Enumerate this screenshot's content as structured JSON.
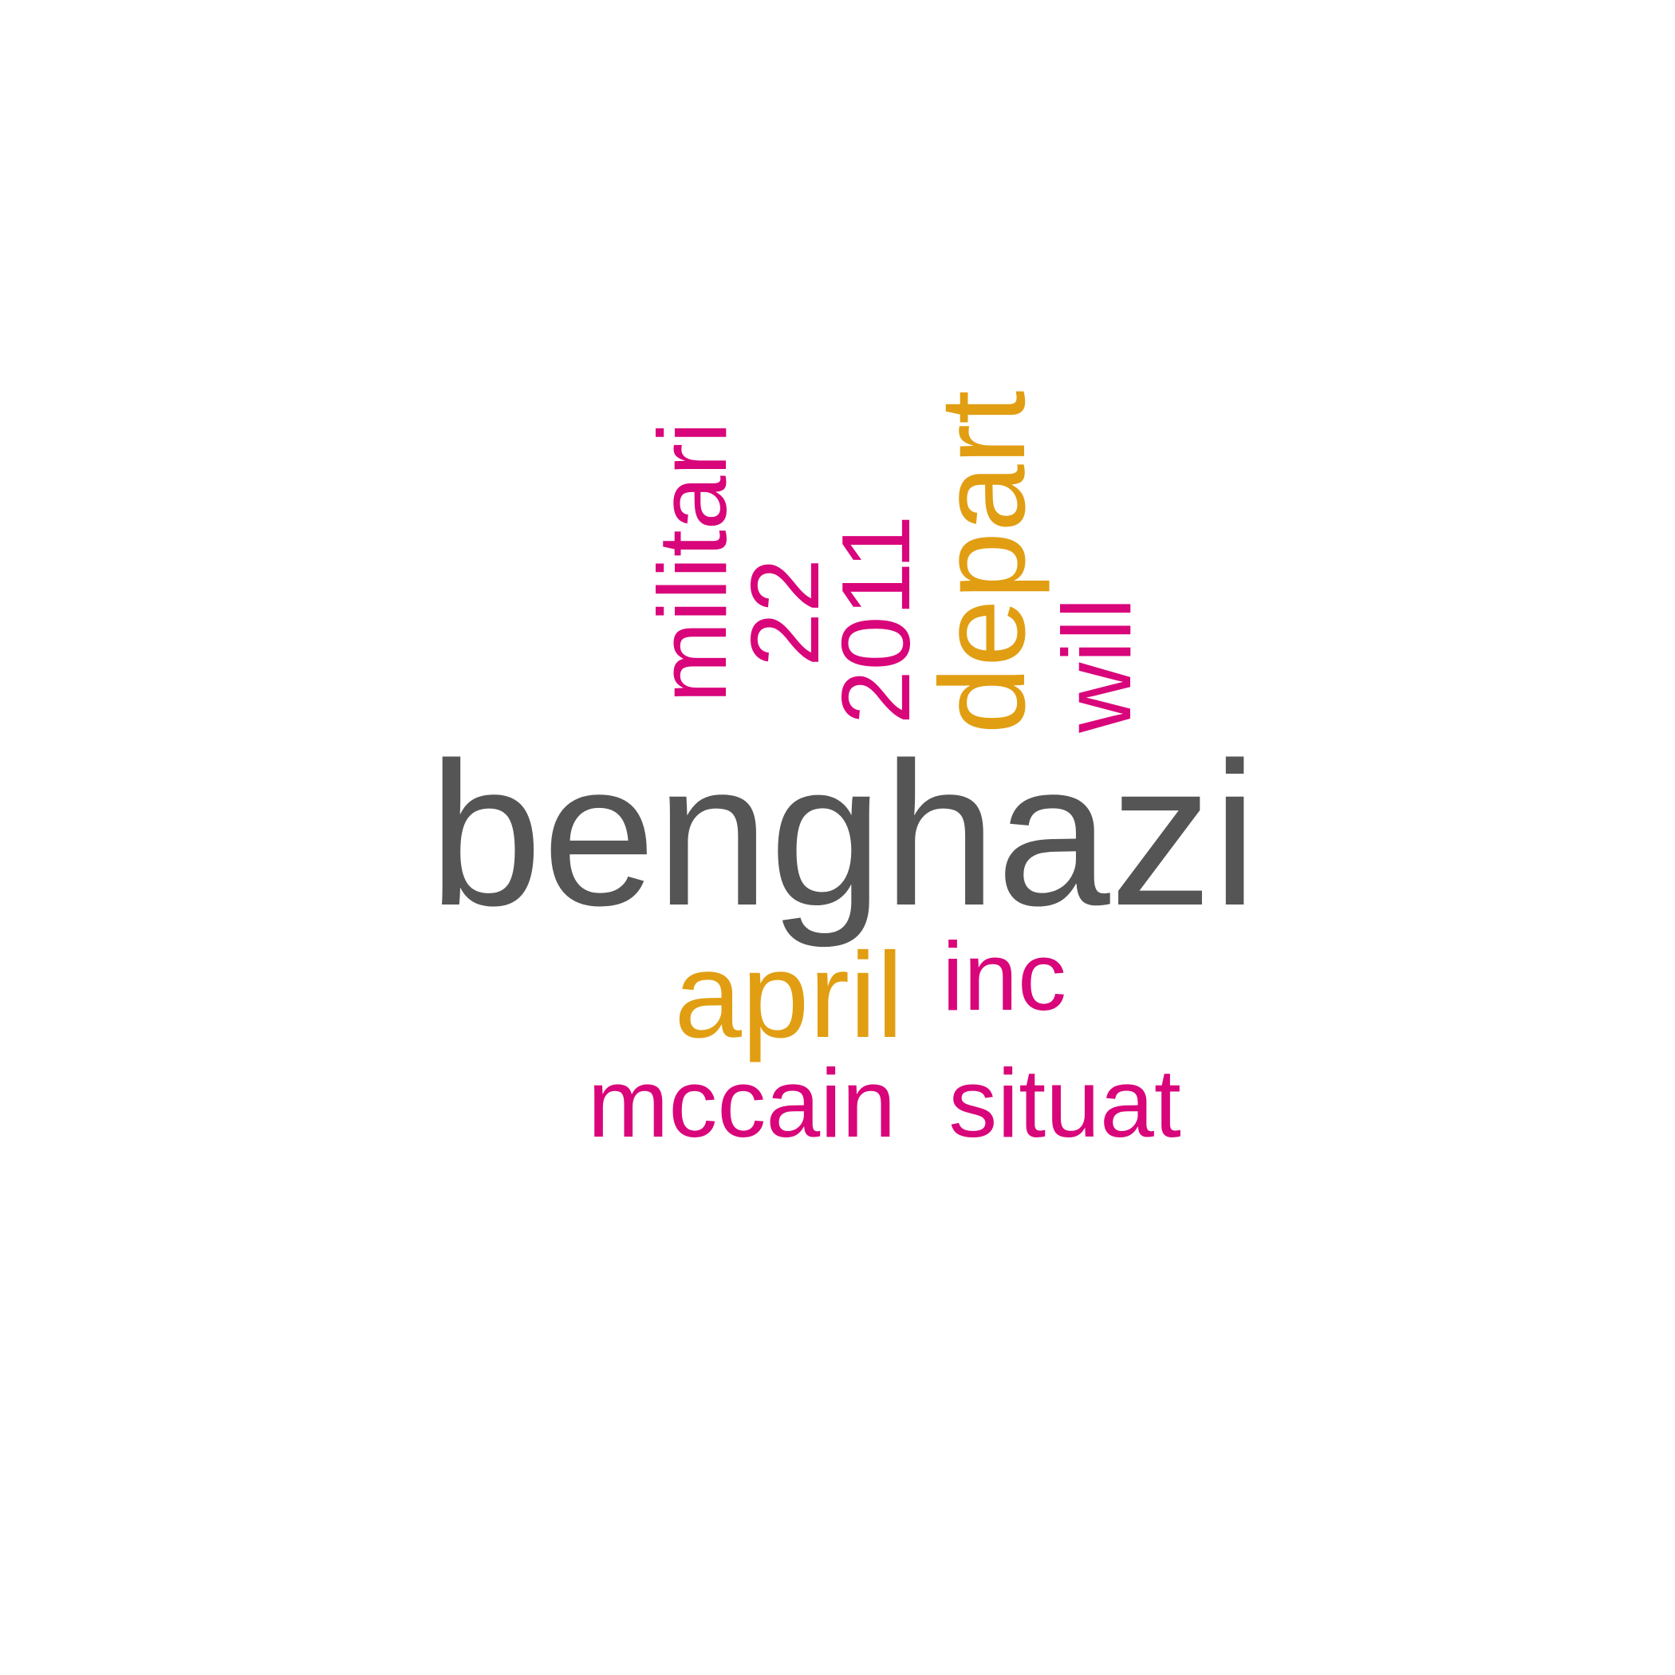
{
  "colors": {
    "dark_gray": "#555555",
    "magenta": "#D9057A",
    "orange": "#E19E12"
  },
  "words": {
    "benghazi": "benghazi",
    "april": "april",
    "inc": "inc",
    "mccain": "mccain",
    "situat": "situat",
    "militari": "militari",
    "twenty_two": "22",
    "year_2011": "2011",
    "depart": "depart",
    "will": "will"
  }
}
